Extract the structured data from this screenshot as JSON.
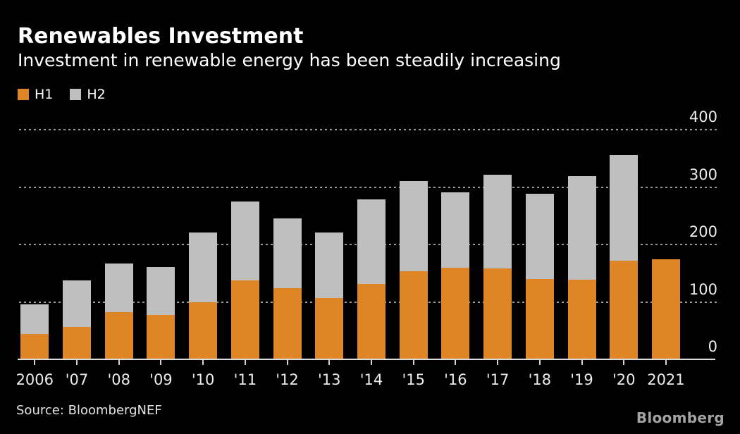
{
  "header": {
    "title": "Renewables Investment",
    "subtitle": "Investment in renewable energy has been steadily increasing"
  },
  "legend": [
    {
      "label": "H1",
      "color": "#de8626"
    },
    {
      "label": "H2",
      "color": "#bfbfbf"
    }
  ],
  "footer": {
    "source": "Source: BloombergNEF",
    "brand": "Bloomberg"
  },
  "colors": {
    "background": "#000000",
    "h1_orange": "#de8626",
    "h2_gray": "#bfbfbf",
    "gridline": "#9a9a9a",
    "axis_line": "#dcdcdc",
    "text": "#ffffff"
  },
  "chart_data": {
    "type": "bar",
    "stacked": true,
    "title": "Renewables Investment",
    "subtitle": "Investment in renewable energy has been steadily increasing",
    "xlabel": "",
    "ylabel": "",
    "categories": [
      "2006",
      "'07",
      "'08",
      "'09",
      "'10",
      "'11",
      "'12",
      "'13",
      "'14",
      "'15",
      "'16",
      "'17",
      "'18",
      "'19",
      "'20",
      "2021"
    ],
    "series": [
      {
        "name": "H1",
        "color": "#de8626",
        "values": [
          44,
          56,
          82,
          77,
          100,
          138,
          124,
          107,
          131,
          153,
          160,
          158,
          140,
          139,
          172,
          174
        ]
      },
      {
        "name": "H2",
        "color": "#bfbfbf",
        "values": [
          52,
          81,
          85,
          84,
          121,
          137,
          121,
          114,
          148,
          157,
          131,
          164,
          148,
          180,
          184,
          0
        ]
      }
    ],
    "totals": [
      96,
      137,
      167,
      161,
      221,
      275,
      245,
      221,
      279,
      310,
      291,
      322,
      288,
      319,
      356,
      174
    ],
    "y_ticks": [
      0,
      100,
      200,
      300,
      400
    ],
    "ylim": [
      0,
      400
    ],
    "y_axis_side": "right",
    "grid": "horizontal-dotted",
    "legend_position": "top-left"
  }
}
